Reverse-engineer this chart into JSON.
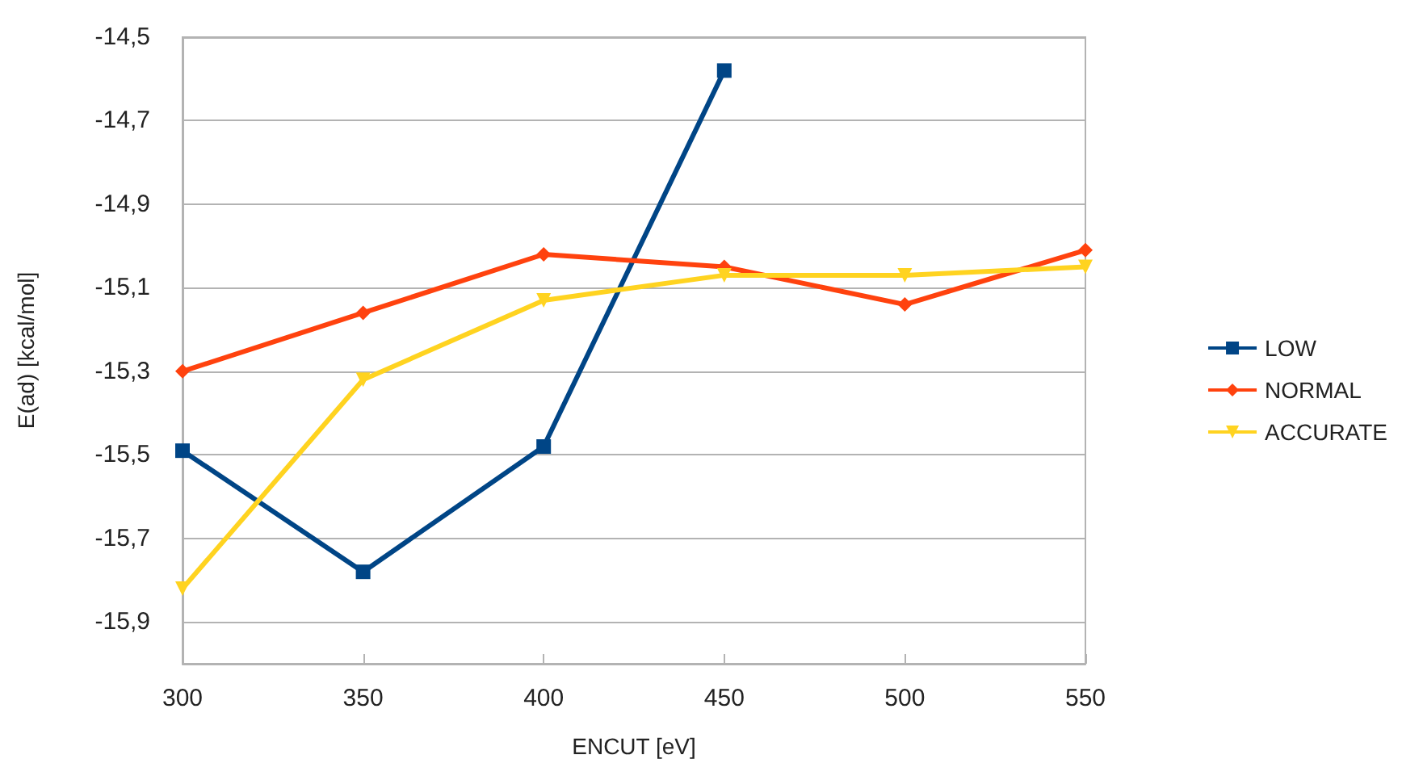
{
  "chart_data": {
    "type": "line",
    "xlabel": "ENCUT [eV]",
    "ylabel": "E(ad) [kcal/mol]",
    "x": [
      300,
      350,
      400,
      450,
      500,
      550
    ],
    "series": [
      {
        "name": "LOW",
        "color": "#004586",
        "marker": "square",
        "values": [
          -15.49,
          -15.78,
          -15.48,
          -14.58,
          null,
          null
        ]
      },
      {
        "name": "NORMAL",
        "color": "#ff420e",
        "marker": "diamond",
        "values": [
          -15.3,
          -15.16,
          -15.02,
          -15.05,
          -15.14,
          -15.01
        ]
      },
      {
        "name": "ACCURATE",
        "color": "#ffd320",
        "marker": "triangle",
        "values": [
          -15.82,
          -15.32,
          -15.13,
          -15.07,
          -15.07,
          -15.05
        ]
      }
    ],
    "xlim": [
      300,
      550
    ],
    "xticks": [
      300,
      350,
      400,
      450,
      500,
      550
    ],
    "ylim": [
      -16,
      -14.5
    ],
    "yticks": [
      {
        "value": -15.9,
        "label": "-15,9"
      },
      {
        "value": -15.7,
        "label": "-15,7"
      },
      {
        "value": -15.5,
        "label": "-15,5"
      },
      {
        "value": -15.3,
        "label": "-15,3"
      },
      {
        "value": -15.1,
        "label": "-15,1"
      },
      {
        "value": -14.9,
        "label": "-14,9"
      },
      {
        "value": -14.7,
        "label": "-14,7"
      },
      {
        "value": -14.5,
        "label": "-14,5"
      }
    ],
    "grid": "y",
    "legend": "right"
  }
}
